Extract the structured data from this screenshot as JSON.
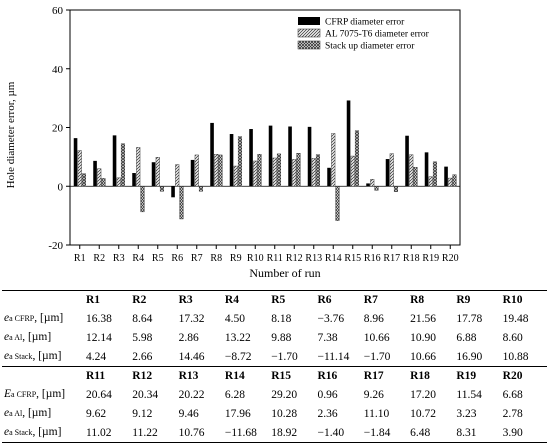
{
  "chart_data": {
    "type": "bar",
    "xlabel": "Number of run",
    "ylabel": "Hole diameter error, µm",
    "ylim": [
      -20,
      60
    ],
    "yticks": [
      -20,
      0,
      20,
      40,
      60
    ],
    "categories": [
      "R1",
      "R2",
      "R3",
      "R4",
      "R5",
      "R6",
      "R7",
      "R8",
      "R9",
      "R10",
      "R11",
      "R12",
      "R13",
      "R14",
      "R15",
      "R16",
      "R17",
      "R18",
      "R19",
      "R20"
    ],
    "legend_position": "top-right",
    "series": [
      {
        "name": "CFRP diameter error",
        "fill": "solid",
        "color": "#000000",
        "values": [
          16.38,
          8.64,
          17.32,
          4.5,
          8.18,
          -3.76,
          8.96,
          21.56,
          17.78,
          19.48,
          20.64,
          20.34,
          20.22,
          6.28,
          29.2,
          0.96,
          9.26,
          17.2,
          11.54,
          6.68
        ]
      },
      {
        "name": "AL 7075-T6 diameter error",
        "fill": "diagonal-hatch",
        "color": "#555555",
        "values": [
          12.14,
          5.98,
          2.86,
          13.22,
          9.88,
          7.38,
          10.66,
          10.9,
          6.88,
          8.6,
          9.62,
          9.12,
          9.46,
          17.96,
          10.28,
          2.36,
          11.1,
          10.72,
          3.23,
          2.78
        ]
      },
      {
        "name": "Stack up diameter error",
        "fill": "cross-hatch",
        "color": "#333333",
        "values": [
          4.24,
          2.66,
          14.46,
          -8.72,
          -1.7,
          -11.14,
          -1.7,
          10.66,
          16.9,
          10.88,
          11.02,
          11.22,
          10.76,
          -11.68,
          18.92,
          -1.4,
          -1.84,
          6.48,
          8.31,
          3.9
        ]
      }
    ]
  },
  "table": {
    "blocks": [
      {
        "headers": [
          "R1",
          "R2",
          "R3",
          "R4",
          "R5",
          "R6",
          "R7",
          "R8",
          "R9",
          "R10"
        ],
        "rows": [
          {
            "sym": "e",
            "sub": "a CFRP",
            "unit": ", [µm]",
            "cells": [
              "16.38",
              "8.64",
              "17.32",
              "4.50",
              "8.18",
              "−3.76",
              "8.96",
              "21.56",
              "17.78",
              "19.48"
            ]
          },
          {
            "sym": "e",
            "sub": "a Al",
            "unit": ", [µm]",
            "cells": [
              "12.14",
              "5.98",
              "2.86",
              "13.22",
              "9.88",
              "7.38",
              "10.66",
              "10.90",
              "6.88",
              "8.60"
            ]
          },
          {
            "sym": "e",
            "sub": "a Stack",
            "unit": ", [µm]",
            "cells": [
              "4.24",
              "2.66",
              "14.46",
              "−8.72",
              "−1.70",
              "−11.14",
              "−1.70",
              "10.66",
              "16.90",
              "10.88"
            ]
          }
        ]
      },
      {
        "headers": [
          "R11",
          "R12",
          "R13",
          "R14",
          "R15",
          "R16",
          "R17",
          "R18",
          "R19",
          "R20"
        ],
        "rows": [
          {
            "sym": "E",
            "sub": "a CFRP",
            "unit": ", [µm]",
            "cells": [
              "20.64",
              "20.34",
              "20.22",
              "6.28",
              "29.20",
              "0.96",
              "9.26",
              "17.20",
              "11.54",
              "6.68"
            ]
          },
          {
            "sym": "e",
            "sub": "a Al",
            "unit": ", [µm]",
            "cells": [
              "9.62",
              "9.12",
              "9.46",
              "17.96",
              "10.28",
              "2.36",
              "11.10",
              "10.72",
              "3.23",
              "2.78"
            ]
          },
          {
            "sym": "e",
            "sub": "a Stack",
            "unit": ", [µm]",
            "cells": [
              "11.02",
              "11.22",
              "10.76",
              "−11.68",
              "18.92",
              "−1.40",
              "−1.84",
              "6.48",
              "8.31",
              "3.90"
            ]
          }
        ]
      }
    ]
  }
}
